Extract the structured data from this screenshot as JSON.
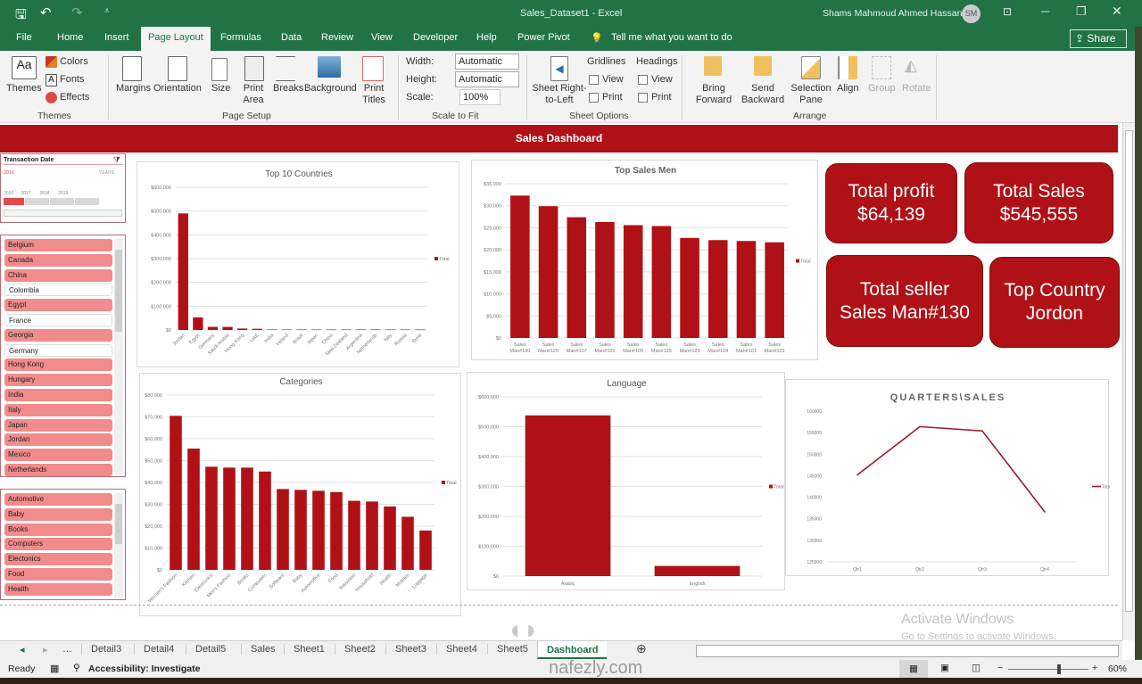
{
  "window": {
    "title": "Sales_Dataset1 - Excel",
    "user": "Shams Mahmoud Ahmed Hassan",
    "user_initials": "SM",
    "share_label": "Share"
  },
  "ribbon_tabs": [
    "File",
    "Home",
    "Insert",
    "Page Layout",
    "Formulas",
    "Data",
    "Review",
    "View",
    "Developer",
    "Help",
    "Power Pivot"
  ],
  "active_tab": "Page Layout",
  "tell_me": "Tell me what you want to do",
  "ribbon": {
    "themes": {
      "themes": "Themes",
      "colors": "Colors",
      "fonts": "Fonts",
      "effects": "Effects",
      "group": "Themes"
    },
    "page_setup": {
      "margins": "Margins",
      "orientation": "Orientation",
      "size": "Size",
      "print_area": "Print Area",
      "breaks": "Breaks",
      "background": "Background",
      "print_titles": "Print Titles",
      "group": "Page Setup"
    },
    "scale": {
      "width_label": "Width:",
      "width_value": "Automatic",
      "height_label": "Height:",
      "height_value": "Automatic",
      "scale_label": "Scale:",
      "scale_value": "100%",
      "group": "Scale to Fit"
    },
    "sheet_options": {
      "rtl": "Sheet Right-to-Left",
      "gridlines": "Gridlines",
      "headings": "Headings",
      "view": "View",
      "print": "Print",
      "group": "Sheet Options"
    },
    "arrange": {
      "bring_forward": "Bring Forward",
      "send_backward": "Send Backward",
      "selection_pane": "Selection Pane",
      "align": "Align",
      "group_btn": "Group",
      "rotate": "Rotate",
      "group": "Arrange"
    }
  },
  "dashboard": {
    "title": "Sales Dashboard",
    "kpis": [
      {
        "label": "Total profit",
        "value": "$64,139"
      },
      {
        "label": "Total Sales",
        "value": "$545,555"
      },
      {
        "label": "Total seller",
        "value": "Sales Man#130"
      },
      {
        "label": "Top Country",
        "value": "Jordon"
      }
    ],
    "date_slicer": {
      "title": "Transaction Date",
      "selection": "2016",
      "level": "YEARS",
      "years": [
        "2016",
        "2017",
        "2018",
        "2019"
      ],
      "selected_year": "2016"
    },
    "country_slicer": [
      {
        "label": "Belgium",
        "selected": true
      },
      {
        "label": "Canada",
        "selected": true
      },
      {
        "label": "China",
        "selected": true
      },
      {
        "label": "Colombia",
        "selected": false
      },
      {
        "label": "Egypt",
        "selected": true
      },
      {
        "label": "France",
        "selected": false
      },
      {
        "label": "Georgia",
        "selected": true
      },
      {
        "label": "Germany",
        "selected": false
      },
      {
        "label": "Hong Kong",
        "selected": true
      },
      {
        "label": "Hungary",
        "selected": true
      },
      {
        "label": "India",
        "selected": true
      },
      {
        "label": "Italy",
        "selected": true
      },
      {
        "label": "Japan",
        "selected": true
      },
      {
        "label": "Jordan",
        "selected": true
      },
      {
        "label": "Mexico",
        "selected": true
      },
      {
        "label": "Netherlands",
        "selected": true
      }
    ],
    "category_slicer": [
      {
        "label": "Automotive",
        "selected": true
      },
      {
        "label": "Baby",
        "selected": true
      },
      {
        "label": "Books",
        "selected": true
      },
      {
        "label": "Computers",
        "selected": true
      },
      {
        "label": "Electonics",
        "selected": true
      },
      {
        "label": "Food",
        "selected": true
      },
      {
        "label": "Health",
        "selected": true
      }
    ]
  },
  "chart_data": [
    {
      "id": "countries",
      "type": "bar",
      "title": "Top 10 Countries",
      "legend": "Total",
      "legend_position": "right",
      "grid": true,
      "categories": [
        "Jordan",
        "Egypt",
        "Germany",
        "Saudi Arabia",
        "Hong Kong",
        "UAE",
        "India",
        "Ireland",
        "Brazil",
        "Japan",
        "China",
        "New Zealand",
        "Argentina",
        "Netherlands",
        "Italy",
        "Russia",
        "Syria"
      ],
      "values": [
        490000,
        53000,
        13000,
        13000,
        6000,
        5000,
        2000,
        2000,
        2000,
        2000,
        2000,
        2000,
        2000,
        2000,
        2000,
        2000,
        2000
      ],
      "ylim": [
        0,
        600000
      ],
      "yticks": [
        "$0",
        "$100,000",
        "$200,000",
        "$300,000",
        "$400,000",
        "$500,000",
        "$600,000"
      ],
      "color": "#b01116"
    },
    {
      "id": "salesmen",
      "type": "bar",
      "title": "Top Sales Men",
      "legend": "Total",
      "legend_position": "right",
      "grid": true,
      "categories": [
        "Sales Man#130",
        "Sales Man#120",
        "Sales Man#107",
        "Sales Man#105",
        "Sales Man#109",
        "Sales Man#125",
        "Sales Man#123",
        "Sales Man#124",
        "Sales Man#101",
        "Sales Man#121"
      ],
      "values": [
        32300,
        29900,
        27400,
        26300,
        25600,
        25400,
        22700,
        22200,
        22000,
        21700
      ],
      "ylim": [
        0,
        35000
      ],
      "yticks": [
        "$0",
        "$5,000",
        "$10,000",
        "$15,000",
        "$20,000",
        "$25,000",
        "$30,000",
        "$35,000"
      ],
      "color": "#b01116"
    },
    {
      "id": "categories",
      "type": "bar",
      "title": "Categories",
      "legend": "Total",
      "legend_position": "right",
      "grid": true,
      "categories": [
        "Women's Fashion",
        "Kitchen",
        "Electronics",
        "Men's Fashion",
        "Books",
        "Computers",
        "Software",
        "Baby",
        "Automotive",
        "Food",
        "Television",
        "Household",
        "Health",
        "Mobiles",
        "Luggage"
      ],
      "values": [
        70500,
        55500,
        47200,
        46800,
        46800,
        45000,
        37000,
        36600,
        36200,
        35600,
        31600,
        31300,
        29000,
        24300,
        18000
      ],
      "ylim": [
        0,
        80000
      ],
      "yticks": [
        "$0",
        "$10,000",
        "$20,000",
        "$30,000",
        "$40,000",
        "$50,000",
        "$60,000",
        "$70,000",
        "$80,000"
      ],
      "color": "#b01116"
    },
    {
      "id": "language",
      "type": "bar",
      "title": "Language",
      "legend": "Total",
      "legend_position": "right",
      "grid": true,
      "categories": [
        "Arabic",
        "English"
      ],
      "values": [
        538000,
        34000
      ],
      "ylim": [
        0,
        600000
      ],
      "yticks": [
        "$0",
        "$100,000",
        "$200,000",
        "$300,000",
        "$400,000",
        "$500,000",
        "$600,000"
      ],
      "color": "#b01116"
    },
    {
      "id": "quarters",
      "type": "line",
      "title": "QUARTERS\\SALES",
      "legend": "Total",
      "legend_position": "right",
      "grid": false,
      "categories": [
        "Qtr1",
        "Qtr2",
        "Qtr3",
        "Qtr4"
      ],
      "values": [
        145200,
        156400,
        155400,
        136600
      ],
      "ylim": [
        125000,
        160000
      ],
      "yticks": [
        "125000",
        "130000",
        "135000",
        "140000",
        "145000",
        "150000",
        "155000",
        "160000"
      ],
      "color": "#a0182a"
    }
  ],
  "sheet_tabs": [
    "Detail3",
    "Detail4",
    "Detail5",
    "Sales",
    "Sheet1",
    "Sheet2",
    "Sheet3",
    "Sheet4",
    "Sheet5",
    "Dashboard"
  ],
  "active_sheet": "Dashboard",
  "status": {
    "ready": "Ready",
    "accessibility": "Accessibility: Investigate",
    "zoom": "60%",
    "zoom_fraction": 0.6
  },
  "watermark": {
    "activate": "Activate Windows",
    "activate_sub": "Go to Settings to activate Windows.",
    "site": "nafezly.com"
  }
}
